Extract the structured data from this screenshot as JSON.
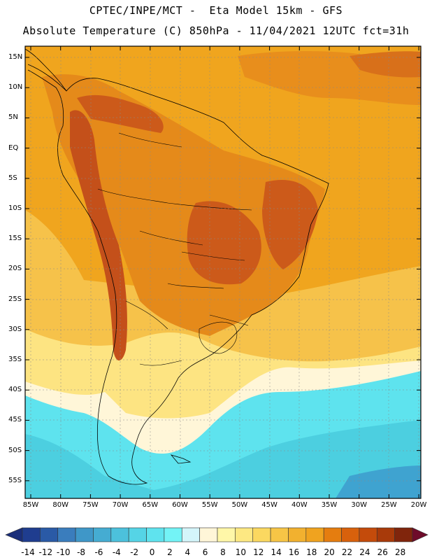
{
  "header": {
    "line1": "CPTEC/INPE/MCT -  Eta Model 15km - GFS",
    "line2": "Absolute Temperature (C) 850hPa - 11/04/2021 12UTC fct=31h"
  },
  "map": {
    "lat_labels": [
      "15N",
      "10N",
      "5N",
      "EQ",
      "5S",
      "10S",
      "15S",
      "20S",
      "25S",
      "30S",
      "35S",
      "40S",
      "45S",
      "50S",
      "55S"
    ],
    "lon_labels": [
      "85W",
      "80W",
      "75W",
      "70W",
      "65W",
      "60W",
      "55W",
      "50W",
      "45W",
      "40W",
      "35W",
      "30W",
      "25W",
      "20W"
    ]
  },
  "colorbar": {
    "labels": [
      "-14",
      "-12",
      "-10",
      "-8",
      "-6",
      "-4",
      "-2",
      "0",
      "2",
      "4",
      "6",
      "8",
      "10",
      "12",
      "14",
      "16",
      "18",
      "20",
      "22",
      "24",
      "26",
      "28"
    ],
    "colors": [
      "#1f3d8f",
      "#2a5aa6",
      "#3a7dbd",
      "#3f97c8",
      "#45acd2",
      "#4cc1dc",
      "#55d4e6",
      "#5fe3ee",
      "#73f3f6",
      "#d4f5fa",
      "#fff6d8",
      "#fff7a8",
      "#fde882",
      "#fbd860",
      "#f7c546",
      "#f2b12f",
      "#f0a31f",
      "#e57d0f",
      "#d8610c",
      "#c44b0b",
      "#a83a0a",
      "#80250c"
    ],
    "low_arrow_color": "#1a2e7a",
    "high_arrow_color": "#6e0b2a"
  },
  "colors": {
    "hot": "#cc5a1a",
    "warm": "#e58a1a",
    "ocean_warm": "#f0a51e",
    "mild": "#f6c24a",
    "cool": "#fde482",
    "cold": "#5ee3ee",
    "colder": "#4ccfe0",
    "coldest": "#3fa3d0"
  }
}
